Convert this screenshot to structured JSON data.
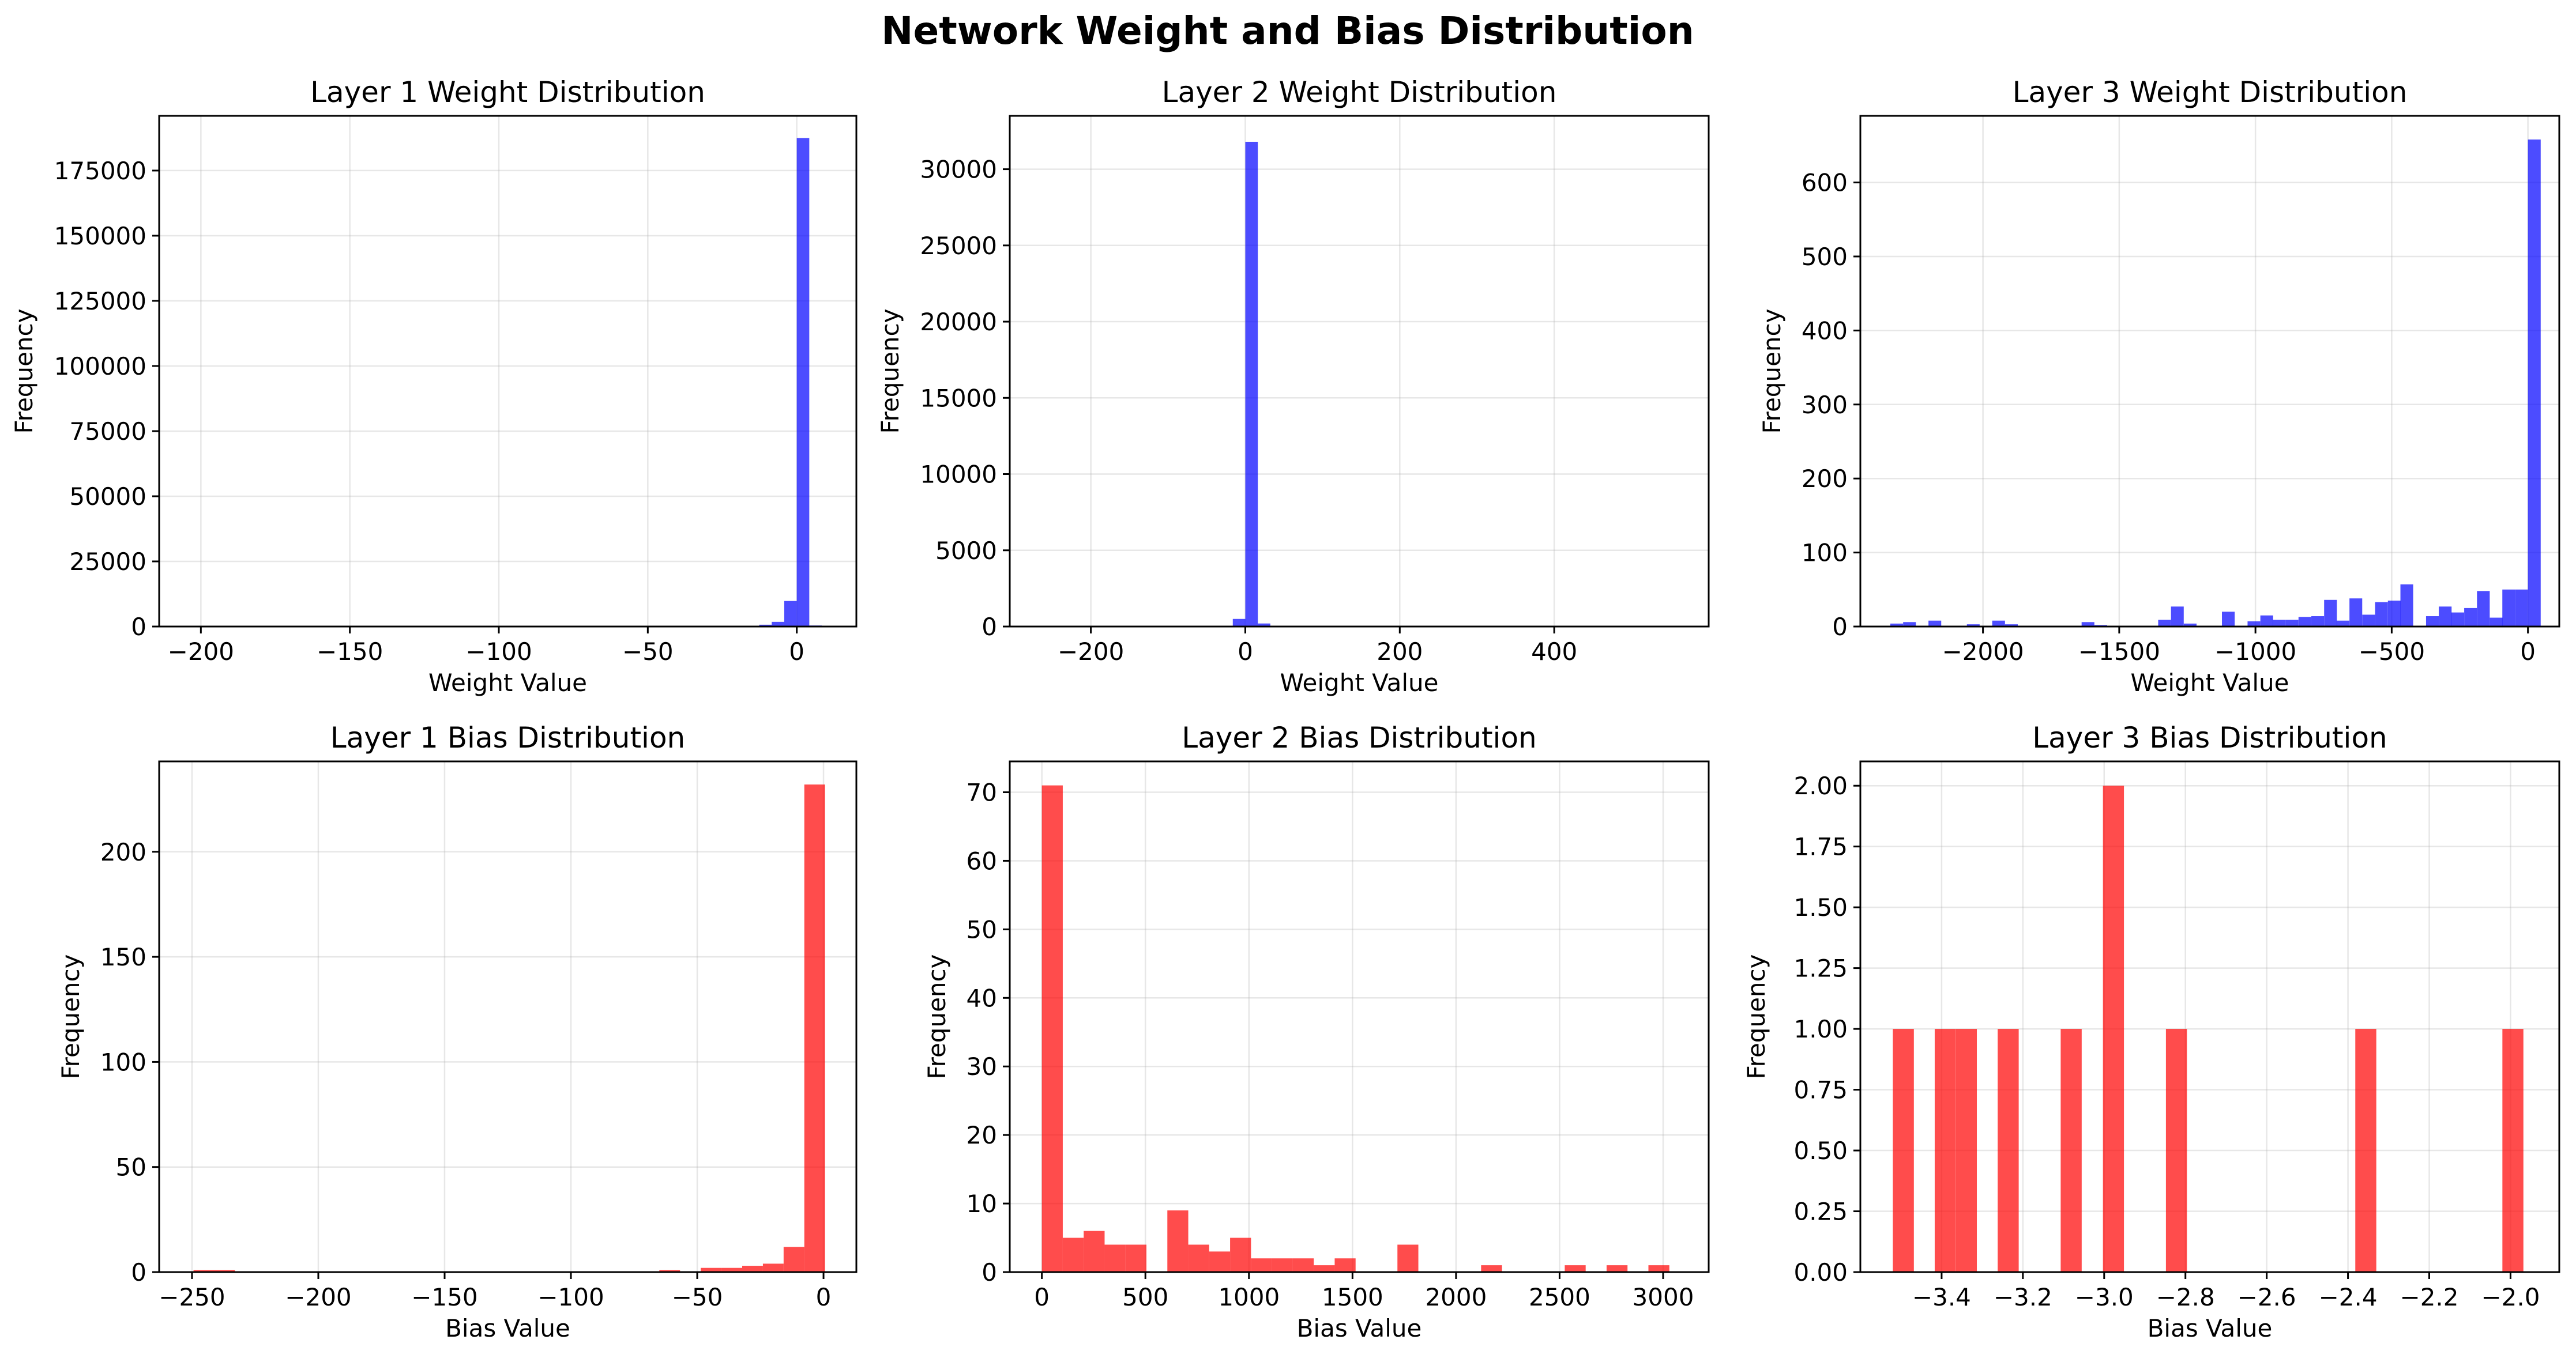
{
  "title": "Network Weight and Bias Distribution",
  "chart_data": [
    {
      "type": "bar",
      "panel": "layer1-weights",
      "title": "Layer 1 Weight Distribution",
      "xlabel": "Weight Value",
      "ylabel": "Frequency",
      "color": "#0000ff",
      "xlim": [
        -214,
        20
      ],
      "ylim": [
        0,
        196000
      ],
      "xticks": [
        -200,
        -150,
        -100,
        -50,
        0
      ],
      "yticks": [
        0,
        25000,
        50000,
        75000,
        100000,
        125000,
        150000,
        175000
      ],
      "xticklabels": [
        "−200",
        "−150",
        "−100",
        "−50",
        "0"
      ],
      "yticklabels": [
        "0",
        "25000",
        "50000",
        "75000",
        "100000",
        "125000",
        "150000",
        "175000"
      ],
      "bin_width": 4.2,
      "bins": [
        [
          -16.8,
          300
        ],
        [
          -12.6,
          700
        ],
        [
          -8.4,
          1800
        ],
        [
          -4.2,
          9800
        ],
        [
          0.0,
          187500
        ],
        [
          4.2,
          400
        ]
      ],
      "grid": true
    },
    {
      "type": "bar",
      "panel": "layer2-weights",
      "title": "Layer 2 Weight Distribution",
      "xlabel": "Weight Value",
      "ylabel": "Frequency",
      "color": "#0000ff",
      "xlim": [
        -305,
        600
      ],
      "ylim": [
        0,
        33500
      ],
      "xticks": [
        -200,
        0,
        200,
        400
      ],
      "yticks": [
        0,
        5000,
        10000,
        15000,
        20000,
        25000,
        30000
      ],
      "xticklabels": [
        "−200",
        "0",
        "200",
        "400"
      ],
      "yticklabels": [
        "0",
        "5000",
        "10000",
        "15000",
        "20000",
        "25000",
        "30000"
      ],
      "bin_width": 16.2,
      "bins": [
        [
          -32.4,
          50
        ],
        [
          -16.2,
          500
        ],
        [
          0.0,
          31800
        ],
        [
          16.2,
          200
        ]
      ],
      "grid": true
    },
    {
      "type": "bar",
      "panel": "layer3-weights",
      "title": "Layer 3 Weight Distribution",
      "xlabel": "Weight Value",
      "ylabel": "Frequency",
      "color": "#0000ff",
      "xlim": [
        -2450,
        115
      ],
      "ylim": [
        0,
        690
      ],
      "xticks": [
        -2000,
        -1500,
        -1000,
        -500,
        0
      ],
      "yticks": [
        0,
        100,
        200,
        300,
        400,
        500,
        600
      ],
      "xticklabels": [
        "−2000",
        "−1500",
        "−1000",
        "−500",
        "0"
      ],
      "yticklabels": [
        "0",
        "100",
        "200",
        "300",
        "400",
        "500",
        "600"
      ],
      "bin_width": 46.8,
      "bins": [
        [
          -2340,
          4
        ],
        [
          -2293,
          6
        ],
        [
          -2200,
          8
        ],
        [
          -2059,
          3
        ],
        [
          -1966,
          8
        ],
        [
          -1919,
          3
        ],
        [
          -1638,
          6
        ],
        [
          -1591,
          2
        ],
        [
          -1357,
          9
        ],
        [
          -1310,
          27
        ],
        [
          -1263,
          4
        ],
        [
          -1123,
          20
        ],
        [
          -1029,
          7
        ],
        [
          -982,
          15
        ],
        [
          -936,
          9
        ],
        [
          -889,
          9
        ],
        [
          -842,
          13
        ],
        [
          -795,
          14
        ],
        [
          -748,
          36
        ],
        [
          -702,
          8
        ],
        [
          -655,
          38
        ],
        [
          -608,
          16
        ],
        [
          -561,
          33
        ],
        [
          -514,
          35
        ],
        [
          -468,
          57
        ],
        [
          -374,
          14
        ],
        [
          -327,
          27
        ],
        [
          -281,
          19
        ],
        [
          -234,
          25
        ],
        [
          -187,
          48
        ],
        [
          -140,
          12
        ],
        [
          -94,
          50
        ],
        [
          -47,
          50
        ],
        [
          0,
          658
        ]
      ],
      "grid": true
    },
    {
      "type": "bar",
      "panel": "layer1-biases",
      "title": "Layer 1 Bias Distribution",
      "xlabel": "Bias Value",
      "ylabel": "Frequency",
      "color": "#ff0000",
      "xlim": [
        -263,
        13
      ],
      "ylim": [
        0,
        243
      ],
      "xticks": [
        -250,
        -200,
        -150,
        -100,
        -50,
        0
      ],
      "yticks": [
        0,
        50,
        100,
        150,
        200
      ],
      "xticklabels": [
        "−250",
        "−200",
        "−150",
        "−100",
        "−50",
        "0"
      ],
      "yticklabels": [
        "0",
        "50",
        "100",
        "150",
        "200"
      ],
      "bin_width": 8.2,
      "bins": [
        [
          -249.4,
          1
        ],
        [
          -241.2,
          1
        ],
        [
          -65.0,
          1
        ],
        [
          -48.6,
          2
        ],
        [
          -40.4,
          2
        ],
        [
          -32.2,
          3
        ],
        [
          -24.0,
          4
        ],
        [
          -15.8,
          12
        ],
        [
          -7.6,
          232
        ]
      ],
      "grid": true
    },
    {
      "type": "bar",
      "panel": "layer2-biases",
      "title": "Layer 2 Bias Distribution",
      "xlabel": "Bias Value",
      "ylabel": "Frequency",
      "color": "#ff0000",
      "xlim": [
        -155,
        3220
      ],
      "ylim": [
        0,
        74.5
      ],
      "xticks": [
        0,
        500,
        1000,
        1500,
        2000,
        2500,
        3000
      ],
      "yticks": [
        0,
        10,
        20,
        30,
        40,
        50,
        60,
        70
      ],
      "xticklabels": [
        "0",
        "500",
        "1000",
        "1500",
        "2000",
        "2500",
        "3000"
      ],
      "yticklabels": [
        "0",
        "10",
        "20",
        "30",
        "40",
        "50",
        "60",
        "70"
      ],
      "bin_width": 101,
      "bins": [
        [
          0,
          71
        ],
        [
          101,
          5
        ],
        [
          202,
          6
        ],
        [
          303,
          4
        ],
        [
          404,
          4
        ],
        [
          606,
          9
        ],
        [
          707,
          4
        ],
        [
          808,
          3
        ],
        [
          909,
          5
        ],
        [
          1010,
          2
        ],
        [
          1111,
          2
        ],
        [
          1212,
          2
        ],
        [
          1313,
          1
        ],
        [
          1414,
          2
        ],
        [
          1717,
          4
        ],
        [
          2121,
          1
        ],
        [
          2525,
          1
        ],
        [
          2727,
          1
        ],
        [
          2929,
          1
        ]
      ],
      "grid": true
    },
    {
      "type": "bar",
      "panel": "layer3-biases",
      "title": "Layer 3 Bias Distribution",
      "xlabel": "Bias Value",
      "ylabel": "Frequency",
      "color": "#ff0000",
      "xlim": [
        -3.6,
        -1.88
      ],
      "ylim": [
        0,
        2.1
      ],
      "xticks": [
        -3.4,
        -3.2,
        -3.0,
        -2.8,
        -2.6,
        -2.4,
        -2.2,
        -2.0
      ],
      "yticks": [
        0,
        0.25,
        0.5,
        0.75,
        1.0,
        1.25,
        1.5,
        1.75,
        2.0
      ],
      "xticklabels": [
        "−3.4",
        "−3.2",
        "−3.0",
        "−2.8",
        "−2.6",
        "−2.4",
        "−2.2",
        "−2.0"
      ],
      "yticklabels": [
        "0.00",
        "0.25",
        "0.50",
        "0.75",
        "1.00",
        "1.25",
        "1.50",
        "1.75",
        "2.00"
      ],
      "bin_width": 0.0517,
      "bins": [
        [
          -3.52,
          1
        ],
        [
          -3.417,
          1
        ],
        [
          -3.365,
          1
        ],
        [
          -3.262,
          1
        ],
        [
          -3.107,
          1
        ],
        [
          -3.003,
          2
        ],
        [
          -2.848,
          1
        ],
        [
          -2.382,
          1
        ],
        [
          -2.02,
          1
        ]
      ],
      "grid": true
    }
  ]
}
